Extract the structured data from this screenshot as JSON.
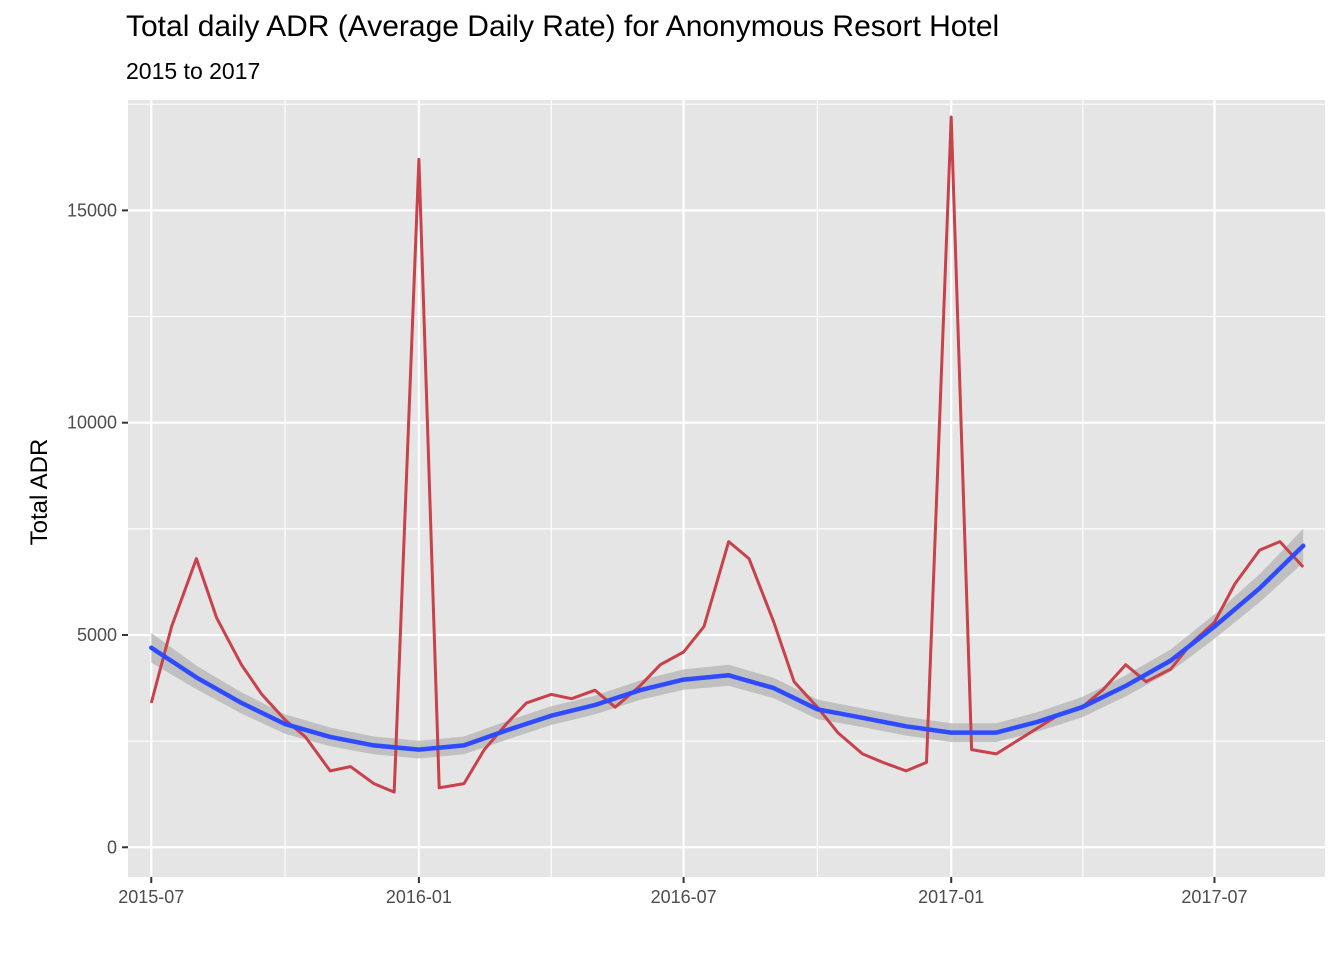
{
  "chart_data": {
    "type": "line",
    "title": "Total daily ADR (Average Daily Rate) for Anonymous Resort Hotel",
    "subtitle": "2015 to 2017",
    "xlabel": "",
    "ylabel": "Total ADR",
    "grid": true,
    "xlim": [
      "2015-06-15",
      "2017-09-15"
    ],
    "ylim": [
      -700,
      17600
    ],
    "x_ticks": [
      {
        "date": "2015-07-01",
        "label": "2015-07"
      },
      {
        "date": "2016-01-01",
        "label": "2016-01"
      },
      {
        "date": "2016-07-01",
        "label": "2016-07"
      },
      {
        "date": "2017-01-01",
        "label": "2017-01"
      },
      {
        "date": "2017-07-01",
        "label": "2017-07"
      }
    ],
    "y_ticks": [
      {
        "value": 0,
        "label": "0"
      },
      {
        "value": 5000,
        "label": "5000"
      },
      {
        "value": 10000,
        "label": "10000"
      },
      {
        "value": 15000,
        "label": "15000"
      }
    ],
    "colors": {
      "panel": "#e5e5e5",
      "grid": "#ffffff",
      "series": "#c8414b",
      "smooth": "#2e4bff",
      "ribbon": "#b3b3b3"
    },
    "series": [
      {
        "x": [
          "2015-07-01",
          "2015-07-15",
          "2015-08-01",
          "2015-08-15",
          "2015-09-01",
          "2015-09-15",
          "2015-10-01",
          "2015-10-15",
          "2015-11-01",
          "2015-11-15",
          "2015-12-01",
          "2015-12-15",
          "2016-01-01",
          "2016-01-15",
          "2016-02-01",
          "2016-02-15",
          "2016-03-01",
          "2016-03-15",
          "2016-04-01",
          "2016-04-15",
          "2016-05-01",
          "2016-05-15",
          "2016-06-01",
          "2016-06-15",
          "2016-07-01",
          "2016-07-15",
          "2016-08-01",
          "2016-08-15",
          "2016-09-01",
          "2016-09-15",
          "2016-10-01",
          "2016-10-15",
          "2016-11-01",
          "2016-11-15",
          "2016-12-01",
          "2016-12-15",
          "2017-01-01",
          "2017-01-15",
          "2017-02-01",
          "2017-02-15",
          "2017-03-01",
          "2017-03-15",
          "2017-04-01",
          "2017-04-15",
          "2017-05-01",
          "2017-05-15",
          "2017-06-01",
          "2017-06-15",
          "2017-07-01",
          "2017-07-15",
          "2017-08-01",
          "2017-08-15",
          "2017-08-31"
        ],
        "y": [
          3400,
          5200,
          6800,
          5400,
          4300,
          3600,
          3000,
          2600,
          1800,
          1900,
          1500,
          1300,
          16200,
          1400,
          1500,
          2300,
          2900,
          3400,
          3600,
          3500,
          3700,
          3300,
          3800,
          4300,
          4600,
          5200,
          7200,
          6800,
          5300,
          3900,
          3300,
          2700,
          2200,
          2000,
          1800,
          2000,
          17200,
          2300,
          2200,
          2500,
          2800,
          3100,
          3300,
          3700,
          4300,
          3900,
          4200,
          4800,
          5300,
          6200,
          7000,
          7200,
          6600
        ]
      }
    ],
    "smooth": {
      "x": [
        "2015-07-01",
        "2015-08-01",
        "2015-09-01",
        "2015-10-01",
        "2015-11-01",
        "2015-12-01",
        "2016-01-01",
        "2016-02-01",
        "2016-03-01",
        "2016-04-01",
        "2016-05-01",
        "2016-06-01",
        "2016-07-01",
        "2016-08-01",
        "2016-09-01",
        "2016-10-01",
        "2016-11-01",
        "2016-12-01",
        "2017-01-01",
        "2017-02-01",
        "2017-03-01",
        "2017-04-01",
        "2017-05-01",
        "2017-06-01",
        "2017-07-01",
        "2017-08-01",
        "2017-08-31"
      ],
      "y": [
        4700,
        4000,
        3400,
        2900,
        2600,
        2400,
        2300,
        2400,
        2750,
        3100,
        3350,
        3700,
        3950,
        4050,
        3750,
        3250,
        3050,
        2850,
        2700,
        2700,
        2950,
        3300,
        3800,
        4400,
        5200,
        6100,
        7100
      ],
      "se": [
        350,
        280,
        250,
        230,
        220,
        210,
        210,
        210,
        220,
        220,
        220,
        230,
        240,
        250,
        240,
        230,
        220,
        220,
        220,
        220,
        230,
        240,
        250,
        260,
        290,
        330,
        400
      ]
    }
  }
}
